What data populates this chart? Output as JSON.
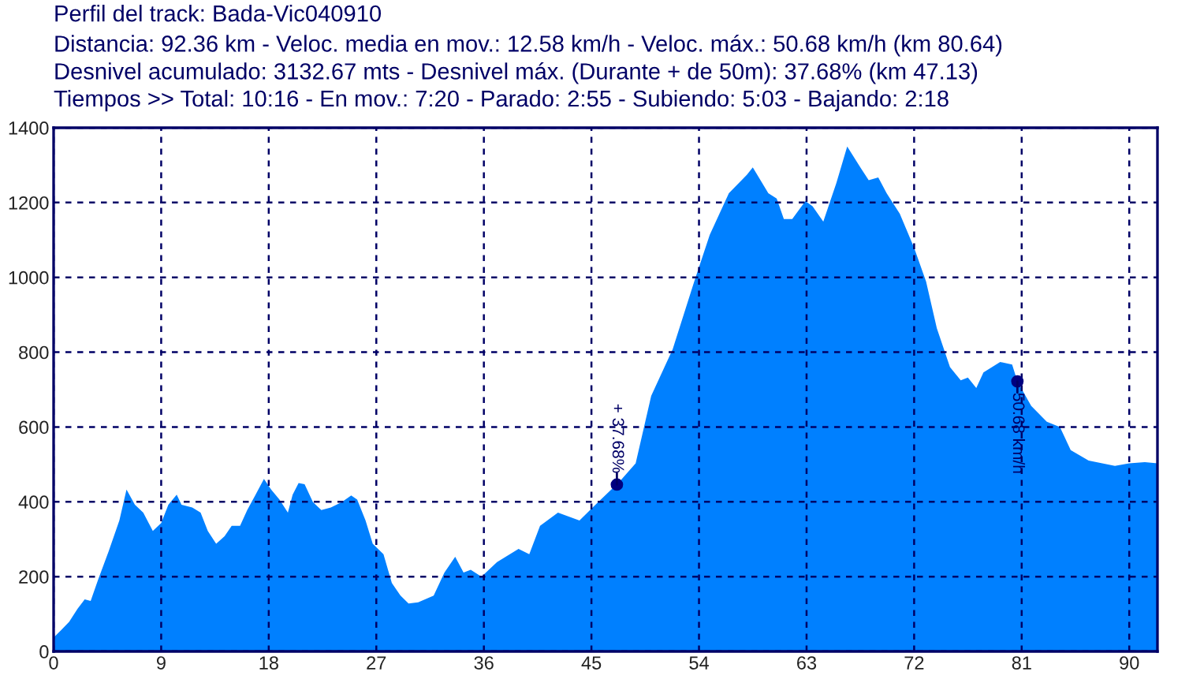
{
  "chart_data": {
    "type": "area",
    "title": "Perfil del track: Bada-Vic040910",
    "subtitle": "Distancia: 92.36 km - Veloc. media en mov.: 12.58 km/h - Veloc. máx.: 50.68 km/h (km 80.64)\nDesnivel acumulado: 3132.67 mts - Desnivel máx. (Durante + de 50m): 37.68% (km 47.13)\nTiempos >> Total: 10:16 - En mov.: 7:20 - Parado: 2:55 - Subiendo: 5:03 - Bajando: 2:18",
    "series": [
      {
        "color": "#0080ff",
        "x": [
          0,
          0.66,
          1.3,
          2.0,
          2.6,
          3.1,
          3.7,
          4.6,
          5.5,
          6.1,
          6.8,
          7.5,
          8.3,
          9.0,
          9.6,
          10.3,
          10.7,
          11.6,
          12.3,
          12.9,
          13.6,
          14.3,
          14.9,
          15.6,
          16.2,
          16.9,
          17.6,
          18.2,
          18.9,
          19.6,
          20.0,
          20.5,
          21.0,
          21.7,
          22.4,
          23.2,
          24.1,
          24.9,
          25.4,
          26.1,
          26.7,
          27.6,
          28.3,
          29.0,
          29.7,
          30.5,
          31.8,
          32.7,
          33.6,
          34.3,
          34.9,
          35.8,
          37.1,
          38.9,
          39.8,
          40.7,
          42.2,
          44.0,
          45.1,
          46.9,
          47.13,
          48.7,
          50.0,
          51.8,
          53.6,
          54.9,
          56.5,
          58.0,
          58.5,
          59.8,
          60.5,
          61.1,
          61.8,
          62.9,
          63.5,
          64.4,
          65.5,
          66.4,
          67.5,
          68.2,
          69.0,
          69.7,
          70.8,
          72.0,
          73.0,
          73.9,
          75.0,
          75.9,
          76.5,
          77.2,
          77.8,
          79.2,
          80.2,
          80.64,
          81.8,
          83.1,
          84.2,
          85.1,
          86.6,
          88.8,
          90.0,
          91.3,
          92.36
        ],
        "values": [
          37,
          58,
          79,
          114,
          139,
          135,
          190,
          267,
          350,
          433,
          392,
          371,
          322,
          343,
          392,
          419,
          392,
          385,
          371,
          322,
          288,
          308,
          336,
          336,
          378,
          419,
          461,
          433,
          406,
          371,
          419,
          450,
          447,
          399,
          378,
          385,
          399,
          417,
          406,
          350,
          288,
          260,
          183,
          150,
          128,
          131,
          149,
          211,
          253,
          211,
          218,
          200,
          239,
          274,
          260,
          336,
          371,
          350,
          385,
          440,
          446,
          503,
          683,
          808,
          989,
          1114,
          1225,
          1274,
          1294,
          1225,
          1211,
          1156,
          1156,
          1204,
          1190,
          1149,
          1253,
          1350,
          1294,
          1260,
          1267,
          1225,
          1170,
          1079,
          989,
          864,
          760,
          725,
          732,
          704,
          746,
          774,
          767,
          722,
          656,
          614,
          600,
          538,
          510,
          496,
          503,
          506,
          503
        ]
      },
      {
        "type": "scatter",
        "color": "#000080",
        "x": [
          47.13,
          80.64
        ],
        "values": [
          446,
          722
        ]
      }
    ],
    "annotations": [
      {
        "text": "+ 37.68%",
        "x": 47.13,
        "y": 446
      },
      {
        "text": "50.68 km/h",
        "x": 80.64,
        "y": 722
      }
    ],
    "xlim": [
      0,
      92.36
    ],
    "ylim": [
      0,
      1400
    ],
    "xticks": [
      0,
      9,
      18,
      27,
      36,
      45,
      54,
      63,
      72,
      81,
      90
    ],
    "yticks": [
      0,
      200,
      400,
      600,
      800,
      1000,
      1200,
      1400
    ],
    "grid": true,
    "line_style": "dashed"
  }
}
